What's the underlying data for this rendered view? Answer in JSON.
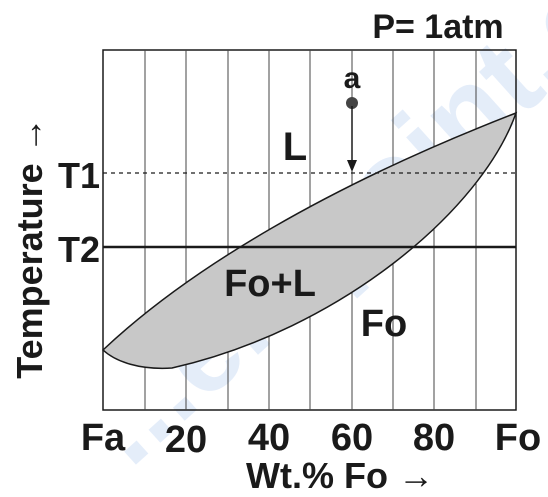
{
  "title": "P= 1atm",
  "y_axis_label": "Temperature →",
  "x_axis_label": "Wt.% Fo →",
  "x_ticks": [
    "Fa",
    "20",
    "40",
    "60",
    "80",
    "Fo"
  ],
  "temperature_labels": {
    "t1": "T1",
    "t2": "T2"
  },
  "point_label": "a",
  "region_labels": {
    "liquid": "L",
    "two_phase": "Fo+L",
    "solid": "Fo"
  },
  "colors": {
    "two_phase_fill": "#c8c8c8",
    "line": "#1a1a1a",
    "watermark": "#2a6fd6"
  },
  "watermark": "...entpoint.co"
}
